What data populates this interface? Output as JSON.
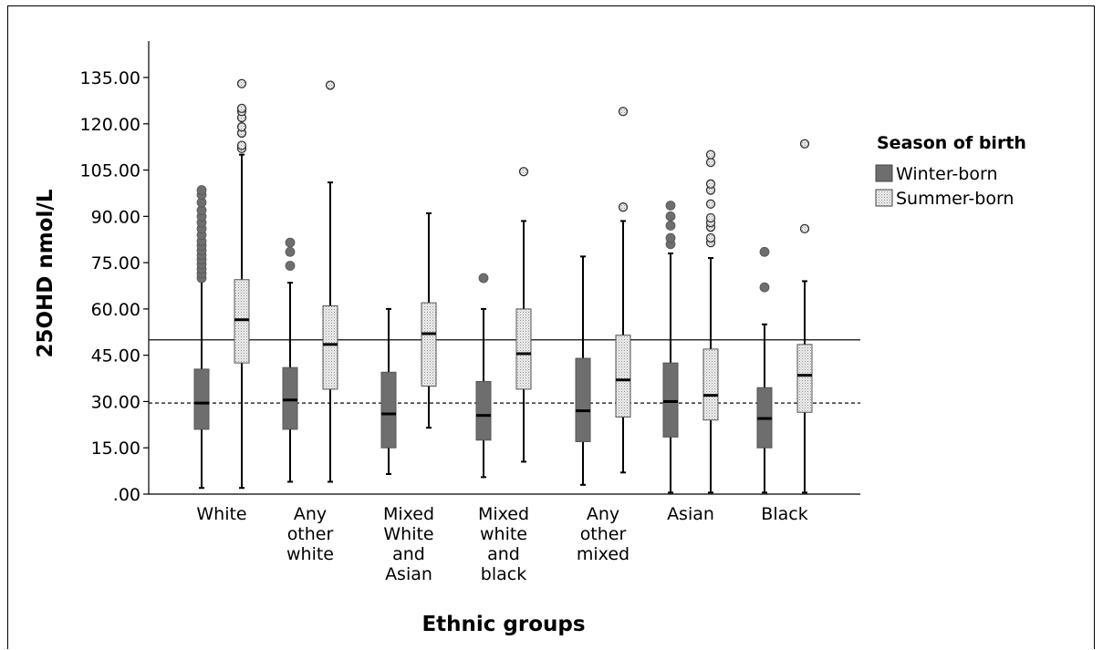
{
  "chart_data": {
    "type": "box",
    "xlabel": "Ethnic groups",
    "ylabel": "25OHD nmol/L",
    "ylim": [
      0,
      145
    ],
    "yticks": [
      ".00",
      "15.00",
      "30.00",
      "45.00",
      "60.00",
      "75.00",
      "90.00",
      "105.00",
      "120.00",
      "135.00"
    ],
    "ytick_values": [
      0,
      15,
      30,
      45,
      60,
      75,
      90,
      105,
      120,
      135
    ],
    "categories": [
      [
        "White"
      ],
      [
        "Any",
        "other",
        "white"
      ],
      [
        "Mixed",
        "White",
        "and",
        "Asian"
      ],
      [
        "Mixed",
        "white",
        "and",
        "black"
      ],
      [
        "Any",
        "other",
        "mixed"
      ],
      [
        "Asian"
      ],
      [
        "Black"
      ]
    ],
    "reference_lines": [
      {
        "value": 50,
        "style": "solid"
      },
      {
        "value": 29.5,
        "style": "dashed"
      }
    ],
    "legend": {
      "title": "Season of birth",
      "position": "right"
    },
    "colors": {
      "winter_fill": "#6e6e6e",
      "summer_fill": "#efefef",
      "summer_dots": "#8c8c8c"
    },
    "series": [
      {
        "name": "Winter-born",
        "boxes": [
          {
            "min": 2,
            "q1": 21,
            "median": 29.5,
            "q3": 40.5,
            "max": 69,
            "outliers": [
              70,
              71.5,
              73,
              74.5,
              76,
              77.5,
              79,
              80.5,
              82,
              84,
              86,
              88,
              90,
              92,
              94.5,
              97,
              98.5
            ]
          },
          {
            "min": 4,
            "q1": 21,
            "median": 30.5,
            "q3": 41,
            "max": 68.5,
            "outliers": [
              74,
              78.5,
              81.5
            ]
          },
          {
            "min": 6.5,
            "q1": 15,
            "median": 26,
            "q3": 39.5,
            "max": 60,
            "outliers": []
          },
          {
            "min": 5.5,
            "q1": 17.5,
            "median": 25.5,
            "q3": 36.5,
            "max": 60,
            "outliers": [
              70
            ]
          },
          {
            "min": 3,
            "q1": 17,
            "median": 27,
            "q3": 44,
            "max": 77,
            "outliers": []
          },
          {
            "min": 0.5,
            "q1": 18.5,
            "median": 30,
            "q3": 42.5,
            "max": 78,
            "outliers": [
              81,
              83,
              87,
              90,
              93.5
            ]
          },
          {
            "min": 0.5,
            "q1": 15,
            "median": 24.5,
            "q3": 34.5,
            "max": 55,
            "outliers": [
              67,
              78.5
            ]
          }
        ]
      },
      {
        "name": "Summer-born",
        "boxes": [
          {
            "min": 2,
            "q1": 42.5,
            "median": 56.5,
            "q3": 69.5,
            "max": 110,
            "outliers": [
              112,
              113,
              117,
              119,
              122,
              124,
              125,
              133
            ]
          },
          {
            "min": 4,
            "q1": 34,
            "median": 48.5,
            "q3": 61,
            "max": 101,
            "outliers": [
              132.5
            ]
          },
          {
            "min": 21.5,
            "q1": 35,
            "median": 52,
            "q3": 62,
            "max": 91,
            "outliers": []
          },
          {
            "min": 10.5,
            "q1": 34,
            "median": 45.5,
            "q3": 60,
            "max": 88.5,
            "outliers": [
              104.5
            ]
          },
          {
            "min": 7,
            "q1": 25,
            "median": 37,
            "q3": 51.5,
            "max": 88.5,
            "outliers": [
              93,
              124
            ]
          },
          {
            "min": 0.5,
            "q1": 24,
            "median": 32,
            "q3": 47,
            "max": 76.5,
            "outliers": [
              81.5,
              83,
              86.5,
              88,
              89.5,
              94,
              98.5,
              100.5,
              107.5,
              110
            ]
          },
          {
            "min": 0.5,
            "q1": 26.5,
            "median": 38.5,
            "q3": 48.5,
            "max": 69,
            "outliers": [
              86,
              113.5
            ]
          }
        ]
      }
    ]
  }
}
